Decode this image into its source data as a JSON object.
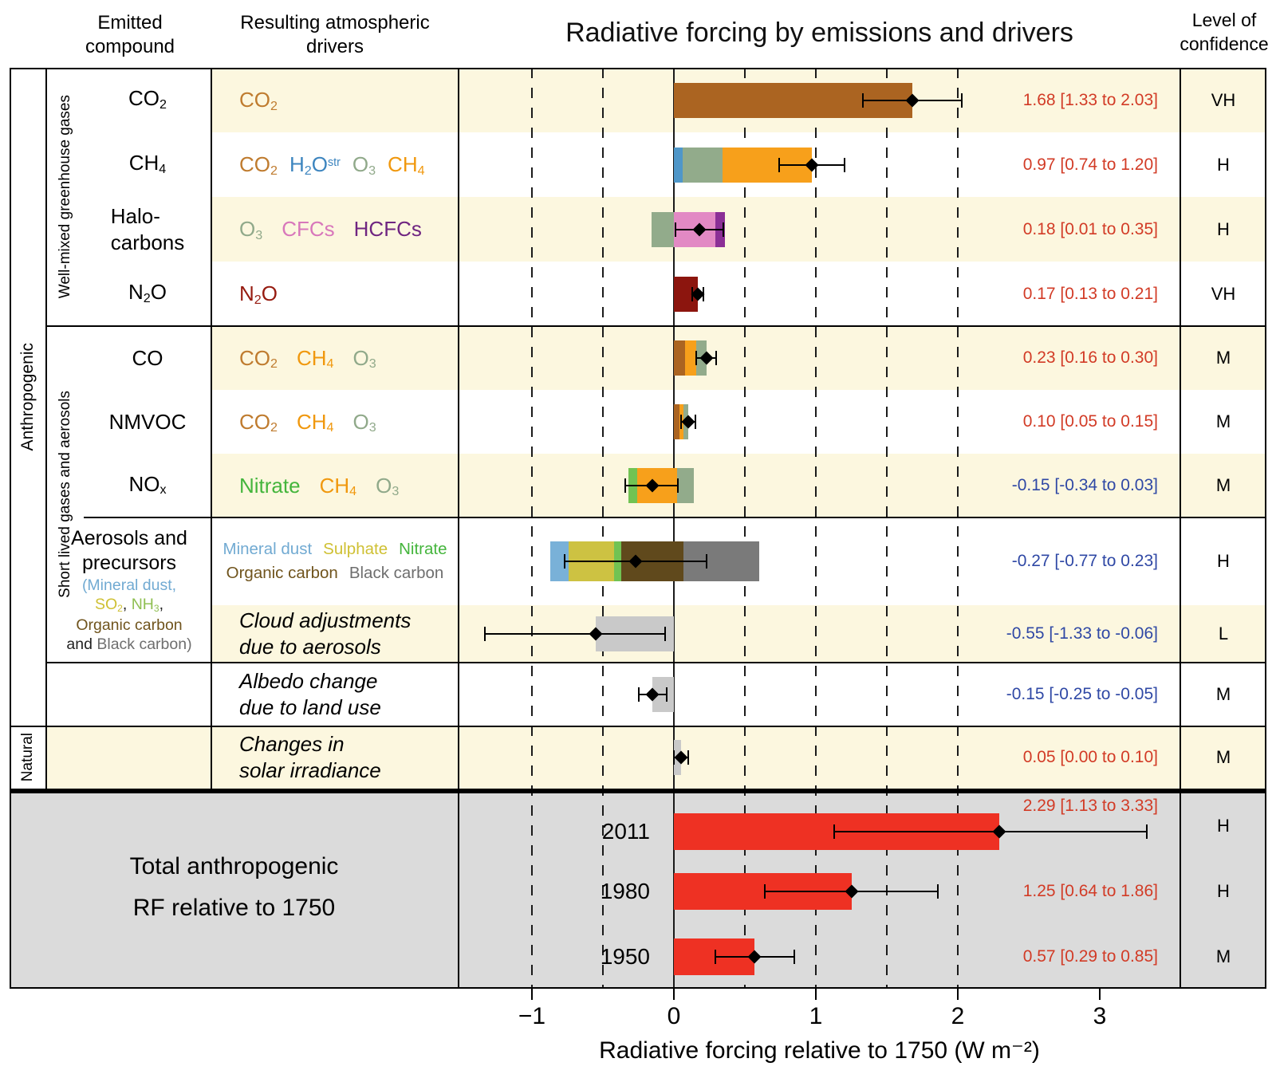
{
  "header": {
    "emitted_compound": [
      "Emitted",
      "compound"
    ],
    "atmospheric_drivers": [
      "Resulting atmospheric",
      "drivers"
    ],
    "level_of_confidence": [
      "Level of",
      "confidence"
    ]
  },
  "side_labels": {
    "anthropogenic": "Anthropogenic",
    "natural": "Natural",
    "well_mixed": "Well-mixed greenhouse gases",
    "short_lived": "Short lived gases and aerosols"
  },
  "total_section": {
    "label_line1": "Total anthropogenic",
    "label_line2": "RF relative to 1750"
  },
  "colors": {
    "row_highlight": "#fcf7df",
    "total_bg": "#dbdbdb",
    "value_positive": "#d23b26",
    "value_negative": "#2f48a5",
    "line": "#1a1a1a",
    "bar_total": "#ee3123",
    "bar_neutral": "#c9c9c9"
  },
  "chart_data": {
    "type": "bar",
    "orientation": "horizontal",
    "title": "Radiative forcing by emissions and drivers",
    "xlabel": "Radiative forcing relative to 1750 (W m⁻²)",
    "unit": "W m⁻²",
    "xlim": [
      -1.52,
      3.57
    ],
    "tick_values": [
      -1,
      0,
      1,
      2,
      3
    ],
    "tick_labels": [
      "−1",
      "0",
      "1",
      "2",
      "3"
    ],
    "dashed_gridlines": [
      -1,
      -0.5,
      0.5,
      1,
      1.5,
      2
    ],
    "rows": [
      {
        "id": "co2",
        "bg": "yellow",
        "compound_lines": [
          [
            {
              "t": "CO"
            },
            {
              "t": "2",
              "sub": true
            }
          ]
        ],
        "drivers": [
          {
            "name": "CO2",
            "color": "#bf7b2e",
            "tokens": [
              {
                "t": "CO"
              },
              {
                "t": "2",
                "sub": true
              }
            ]
          }
        ],
        "segments": [
          {
            "name": "CO2",
            "from": 0,
            "to": 1.68,
            "color": "#ab6421"
          }
        ],
        "low": 1.33,
        "best": 1.68,
        "high": 2.03,
        "value_text": "1.68 [1.33 to 2.03]",
        "value_sign": "positive",
        "confidence": "VH"
      },
      {
        "id": "ch4",
        "bg": "white",
        "compound_lines": [
          [
            {
              "t": "CH"
            },
            {
              "t": "4",
              "sub": true
            }
          ]
        ],
        "drivers": [
          {
            "name": "CO2",
            "color": "#bf7b2e",
            "tokens": [
              {
                "t": "CO"
              },
              {
                "t": "2",
                "sub": true
              }
            ]
          },
          {
            "name": "H2O_strat",
            "color": "#3d85bf",
            "tokens": [
              {
                "t": "H"
              },
              {
                "t": "2",
                "sub": true
              },
              {
                "t": "O"
              },
              {
                "t": "str",
                "sup": true
              }
            ]
          },
          {
            "name": "O3",
            "color": "#90a98a",
            "tokens": [
              {
                "t": "O"
              },
              {
                "t": "3",
                "sub": true
              }
            ]
          },
          {
            "name": "CH4",
            "color": "#f0980e",
            "tokens": [
              {
                "t": "CH"
              },
              {
                "t": "4",
                "sub": true
              }
            ]
          }
        ],
        "segments": [
          {
            "name": "H2O_strat",
            "from": 0,
            "to": 0.06,
            "color": "#4f97c9"
          },
          {
            "name": "O3",
            "from": 0.06,
            "to": 0.34,
            "color": "#92ab8b"
          },
          {
            "name": "CH4",
            "from": 0.34,
            "to": 0.97,
            "color": "#f7a01b"
          }
        ],
        "low": 0.74,
        "best": 0.97,
        "high": 1.2,
        "value_text": "0.97 [0.74 to 1.20]",
        "value_sign": "positive",
        "confidence": "H"
      },
      {
        "id": "halocarbons",
        "bg": "yellow",
        "compound_lines": [
          [
            {
              "t": "Halo-"
            }
          ],
          [
            {
              "t": "carbons"
            }
          ]
        ],
        "drivers": [
          {
            "name": "O3",
            "color": "#90a98a",
            "tokens": [
              {
                "t": "O"
              },
              {
                "t": "3",
                "sub": true
              }
            ]
          },
          {
            "name": "CFCs",
            "color": "#d877bb",
            "tokens": [
              {
                "t": "CFCs"
              }
            ]
          },
          {
            "name": "HCFCs",
            "color": "#6f2581",
            "tokens": [
              {
                "t": "HCFCs"
              }
            ]
          }
        ],
        "segments": [
          {
            "name": "O3",
            "from": -0.16,
            "to": 0,
            "color": "#92ab8b"
          },
          {
            "name": "CFCs",
            "from": 0,
            "to": 0.29,
            "color": "#e289c4"
          },
          {
            "name": "HCFCs",
            "from": 0.29,
            "to": 0.36,
            "color": "#8b2f96"
          }
        ],
        "low": 0.01,
        "best": 0.18,
        "high": 0.35,
        "value_text": "0.18 [0.01 to 0.35]",
        "value_sign": "positive",
        "confidence": "H"
      },
      {
        "id": "n2o",
        "bg": "white",
        "compound_lines": [
          [
            {
              "t": "N"
            },
            {
              "t": "2",
              "sub": true
            },
            {
              "t": "O"
            }
          ]
        ],
        "drivers": [
          {
            "name": "N2O",
            "color": "#961b10",
            "tokens": [
              {
                "t": "N"
              },
              {
                "t": "2",
                "sub": true
              },
              {
                "t": "O"
              }
            ]
          }
        ],
        "segments": [
          {
            "name": "N2O",
            "from": 0,
            "to": 0.17,
            "color": "#8c150e"
          }
        ],
        "low": 0.13,
        "best": 0.17,
        "high": 0.21,
        "value_text": "0.17 [0.13 to 0.21]",
        "value_sign": "positive",
        "confidence": "VH"
      },
      {
        "id": "co",
        "bg": "yellow",
        "compound_lines": [
          [
            {
              "t": "CO"
            }
          ]
        ],
        "drivers": [
          {
            "name": "CO2",
            "color": "#bf7b2e",
            "tokens": [
              {
                "t": "CO"
              },
              {
                "t": "2",
                "sub": true
              }
            ]
          },
          {
            "name": "CH4",
            "color": "#f0980e",
            "tokens": [
              {
                "t": "CH"
              },
              {
                "t": "4",
                "sub": true
              }
            ]
          },
          {
            "name": "O3",
            "color": "#90a98a",
            "tokens": [
              {
                "t": "O"
              },
              {
                "t": "3",
                "sub": true
              }
            ]
          }
        ],
        "segments": [
          {
            "name": "CO2",
            "from": 0,
            "to": 0.08,
            "color": "#ab6421"
          },
          {
            "name": "CH4",
            "from": 0.08,
            "to": 0.16,
            "color": "#f7a01b"
          },
          {
            "name": "O3",
            "from": 0.16,
            "to": 0.23,
            "color": "#92ab8b"
          }
        ],
        "low": 0.16,
        "best": 0.23,
        "high": 0.3,
        "value_text": "0.23 [0.16 to 0.30]",
        "value_sign": "positive",
        "confidence": "M"
      },
      {
        "id": "nmvoc",
        "bg": "white",
        "compound_lines": [
          [
            {
              "t": "NMVOC"
            }
          ]
        ],
        "drivers": [
          {
            "name": "CO2",
            "color": "#bf7b2e",
            "tokens": [
              {
                "t": "CO"
              },
              {
                "t": "2",
                "sub": true
              }
            ]
          },
          {
            "name": "CH4",
            "color": "#f0980e",
            "tokens": [
              {
                "t": "CH"
              },
              {
                "t": "4",
                "sub": true
              }
            ]
          },
          {
            "name": "O3",
            "color": "#90a98a",
            "tokens": [
              {
                "t": "O"
              },
              {
                "t": "3",
                "sub": true
              }
            ]
          }
        ],
        "segments": [
          {
            "name": "CO2",
            "from": 0,
            "to": 0.04,
            "color": "#ab6421"
          },
          {
            "name": "CH4",
            "from": 0.04,
            "to": 0.07,
            "color": "#f7a01b"
          },
          {
            "name": "O3",
            "from": 0.07,
            "to": 0.1,
            "color": "#92ab8b"
          }
        ],
        "low": 0.05,
        "best": 0.1,
        "high": 0.15,
        "value_text": "0.10 [0.05 to 0.15]",
        "value_sign": "positive",
        "confidence": "M"
      },
      {
        "id": "nox",
        "bg": "yellow",
        "compound_lines": [
          [
            {
              "t": "NO"
            },
            {
              "t": "x",
              "sub": true
            }
          ]
        ],
        "drivers": [
          {
            "name": "Nitrate",
            "color": "#44b53c",
            "tokens": [
              {
                "t": "Nitrate"
              }
            ]
          },
          {
            "name": "CH4",
            "color": "#f0980e",
            "tokens": [
              {
                "t": "CH"
              },
              {
                "t": "4",
                "sub": true
              }
            ]
          },
          {
            "name": "O3",
            "color": "#90a98a",
            "tokens": [
              {
                "t": "O"
              },
              {
                "t": "3",
                "sub": true
              }
            ]
          }
        ],
        "segments": [
          {
            "name": "Nitrate",
            "from": -0.32,
            "to": -0.26,
            "color": "#71c353"
          },
          {
            "name": "CH4",
            "from": -0.26,
            "to": 0.02,
            "color": "#f7a01b"
          },
          {
            "name": "O3",
            "from": 0.02,
            "to": 0.14,
            "color": "#92ab8b"
          }
        ],
        "low": -0.34,
        "best": -0.15,
        "high": 0.03,
        "value_text": "-0.15 [-0.34 to 0.03]",
        "value_sign": "negative",
        "confidence": "M"
      },
      {
        "id": "aerosols",
        "bg": "white",
        "compound_block": {
          "title_lines": [
            "Aerosols and",
            "precursors"
          ],
          "detail_lines": [
            [
              {
                "t": "(Mineral dust,",
                "c": "#71aad2"
              }
            ],
            [
              {
                "t": "SO",
                "c": "#cfc033"
              },
              {
                "t": "2",
                "sub": true,
                "c": "#cfc033"
              },
              {
                "t": ", ",
                "c": "#222222"
              },
              {
                "t": "NH",
                "c": "#8fbf52"
              },
              {
                "t": "3",
                "sub": true,
                "c": "#8fbf52"
              },
              {
                "t": ",",
                "c": "#222222"
              }
            ],
            [
              {
                "t": "Organic carbon",
                "c": "#70541d"
              }
            ],
            [
              {
                "t": "and ",
                "c": "#222222"
              },
              {
                "t": "Black carbon)",
                "c": "#6e6e6e"
              }
            ]
          ]
        },
        "driver_lines": [
          [
            {
              "t": "Mineral dust",
              "c": "#71aad2"
            },
            {
              "t": "Sulphate",
              "c": "#cfc033"
            },
            {
              "t": "Nitrate",
              "c": "#44b53c"
            }
          ],
          [
            {
              "t": "Organic carbon",
              "c": "#70541d"
            },
            {
              "t": "Black carbon",
              "c": "#6e6e6e"
            }
          ]
        ],
        "segments": [
          {
            "name": "Mineral dust",
            "from": -0.87,
            "to": -0.74,
            "color": "#79b1d8"
          },
          {
            "name": "Sulphate",
            "from": -0.74,
            "to": -0.42,
            "color": "#cdc242"
          },
          {
            "name": "Nitrate",
            "from": -0.42,
            "to": -0.37,
            "color": "#71c353"
          },
          {
            "name": "Organic carbon",
            "from": -0.37,
            "to": 0.07,
            "color": "#60491c"
          },
          {
            "name": "Black carbon",
            "from": 0.07,
            "to": 0.6,
            "color": "#7a7a7a"
          }
        ],
        "low": -0.77,
        "best": -0.27,
        "high": 0.23,
        "value_text": "-0.27 [-0.77 to 0.23]",
        "value_sign": "negative",
        "confidence": "H"
      },
      {
        "id": "cloud-adjustments",
        "bg": "yellow",
        "driver_italic": [
          "Cloud adjustments",
          "due to aerosols"
        ],
        "segments": [
          {
            "name": "Cloud adjustments",
            "from": -0.55,
            "to": 0,
            "color": "#c9c9c9"
          }
        ],
        "low": -1.33,
        "best": -0.55,
        "high": -0.06,
        "value_text": "-0.55 [-1.33 to -0.06]",
        "value_sign": "negative",
        "confidence": "L"
      },
      {
        "id": "albedo-land-use",
        "bg": "white",
        "driver_italic": [
          "Albedo change",
          "due to land use"
        ],
        "segments": [
          {
            "name": "Albedo change",
            "from": -0.15,
            "to": 0,
            "color": "#c9c9c9"
          }
        ],
        "low": -0.25,
        "best": -0.15,
        "high": -0.05,
        "value_text": "-0.15 [-0.25 to -0.05]",
        "value_sign": "negative",
        "confidence": "M"
      },
      {
        "id": "solar-irradiance",
        "bg": "yellow",
        "band_full": true,
        "driver_italic": [
          "Changes in",
          "solar irradiance"
        ],
        "segments": [
          {
            "name": "Solar irradiance",
            "from": 0,
            "to": 0.05,
            "color": "#c9c9c9"
          }
        ],
        "low": 0.0,
        "best": 0.05,
        "high": 0.1,
        "value_text": "0.05 [0.00 to 0.10]",
        "value_sign": "positive",
        "confidence": "M"
      }
    ],
    "totals": [
      {
        "year": "2011",
        "segments": [
          {
            "name": "Total anthropogenic RF 2011",
            "from": 0,
            "to": 2.29,
            "color": "#ee3123"
          }
        ],
        "low": 1.13,
        "best": 2.29,
        "high": 3.33,
        "value_text": "2.29 [1.13 to 3.33]",
        "value_sign": "positive",
        "confidence": "H"
      },
      {
        "year": "1980",
        "segments": [
          {
            "name": "Total anthropogenic RF 1980",
            "from": 0,
            "to": 1.25,
            "color": "#ee3123"
          }
        ],
        "low": 0.64,
        "best": 1.25,
        "high": 1.86,
        "value_text": "1.25 [0.64 to 1.86]",
        "value_sign": "positive",
        "confidence": "H"
      },
      {
        "year": "1950",
        "segments": [
          {
            "name": "Total anthropogenic RF 1950",
            "from": 0,
            "to": 0.57,
            "color": "#ee3123"
          }
        ],
        "low": 0.29,
        "best": 0.57,
        "high": 0.85,
        "value_text": "0.57 [0.29 to 0.85]",
        "value_sign": "positive",
        "confidence": "M"
      }
    ]
  }
}
